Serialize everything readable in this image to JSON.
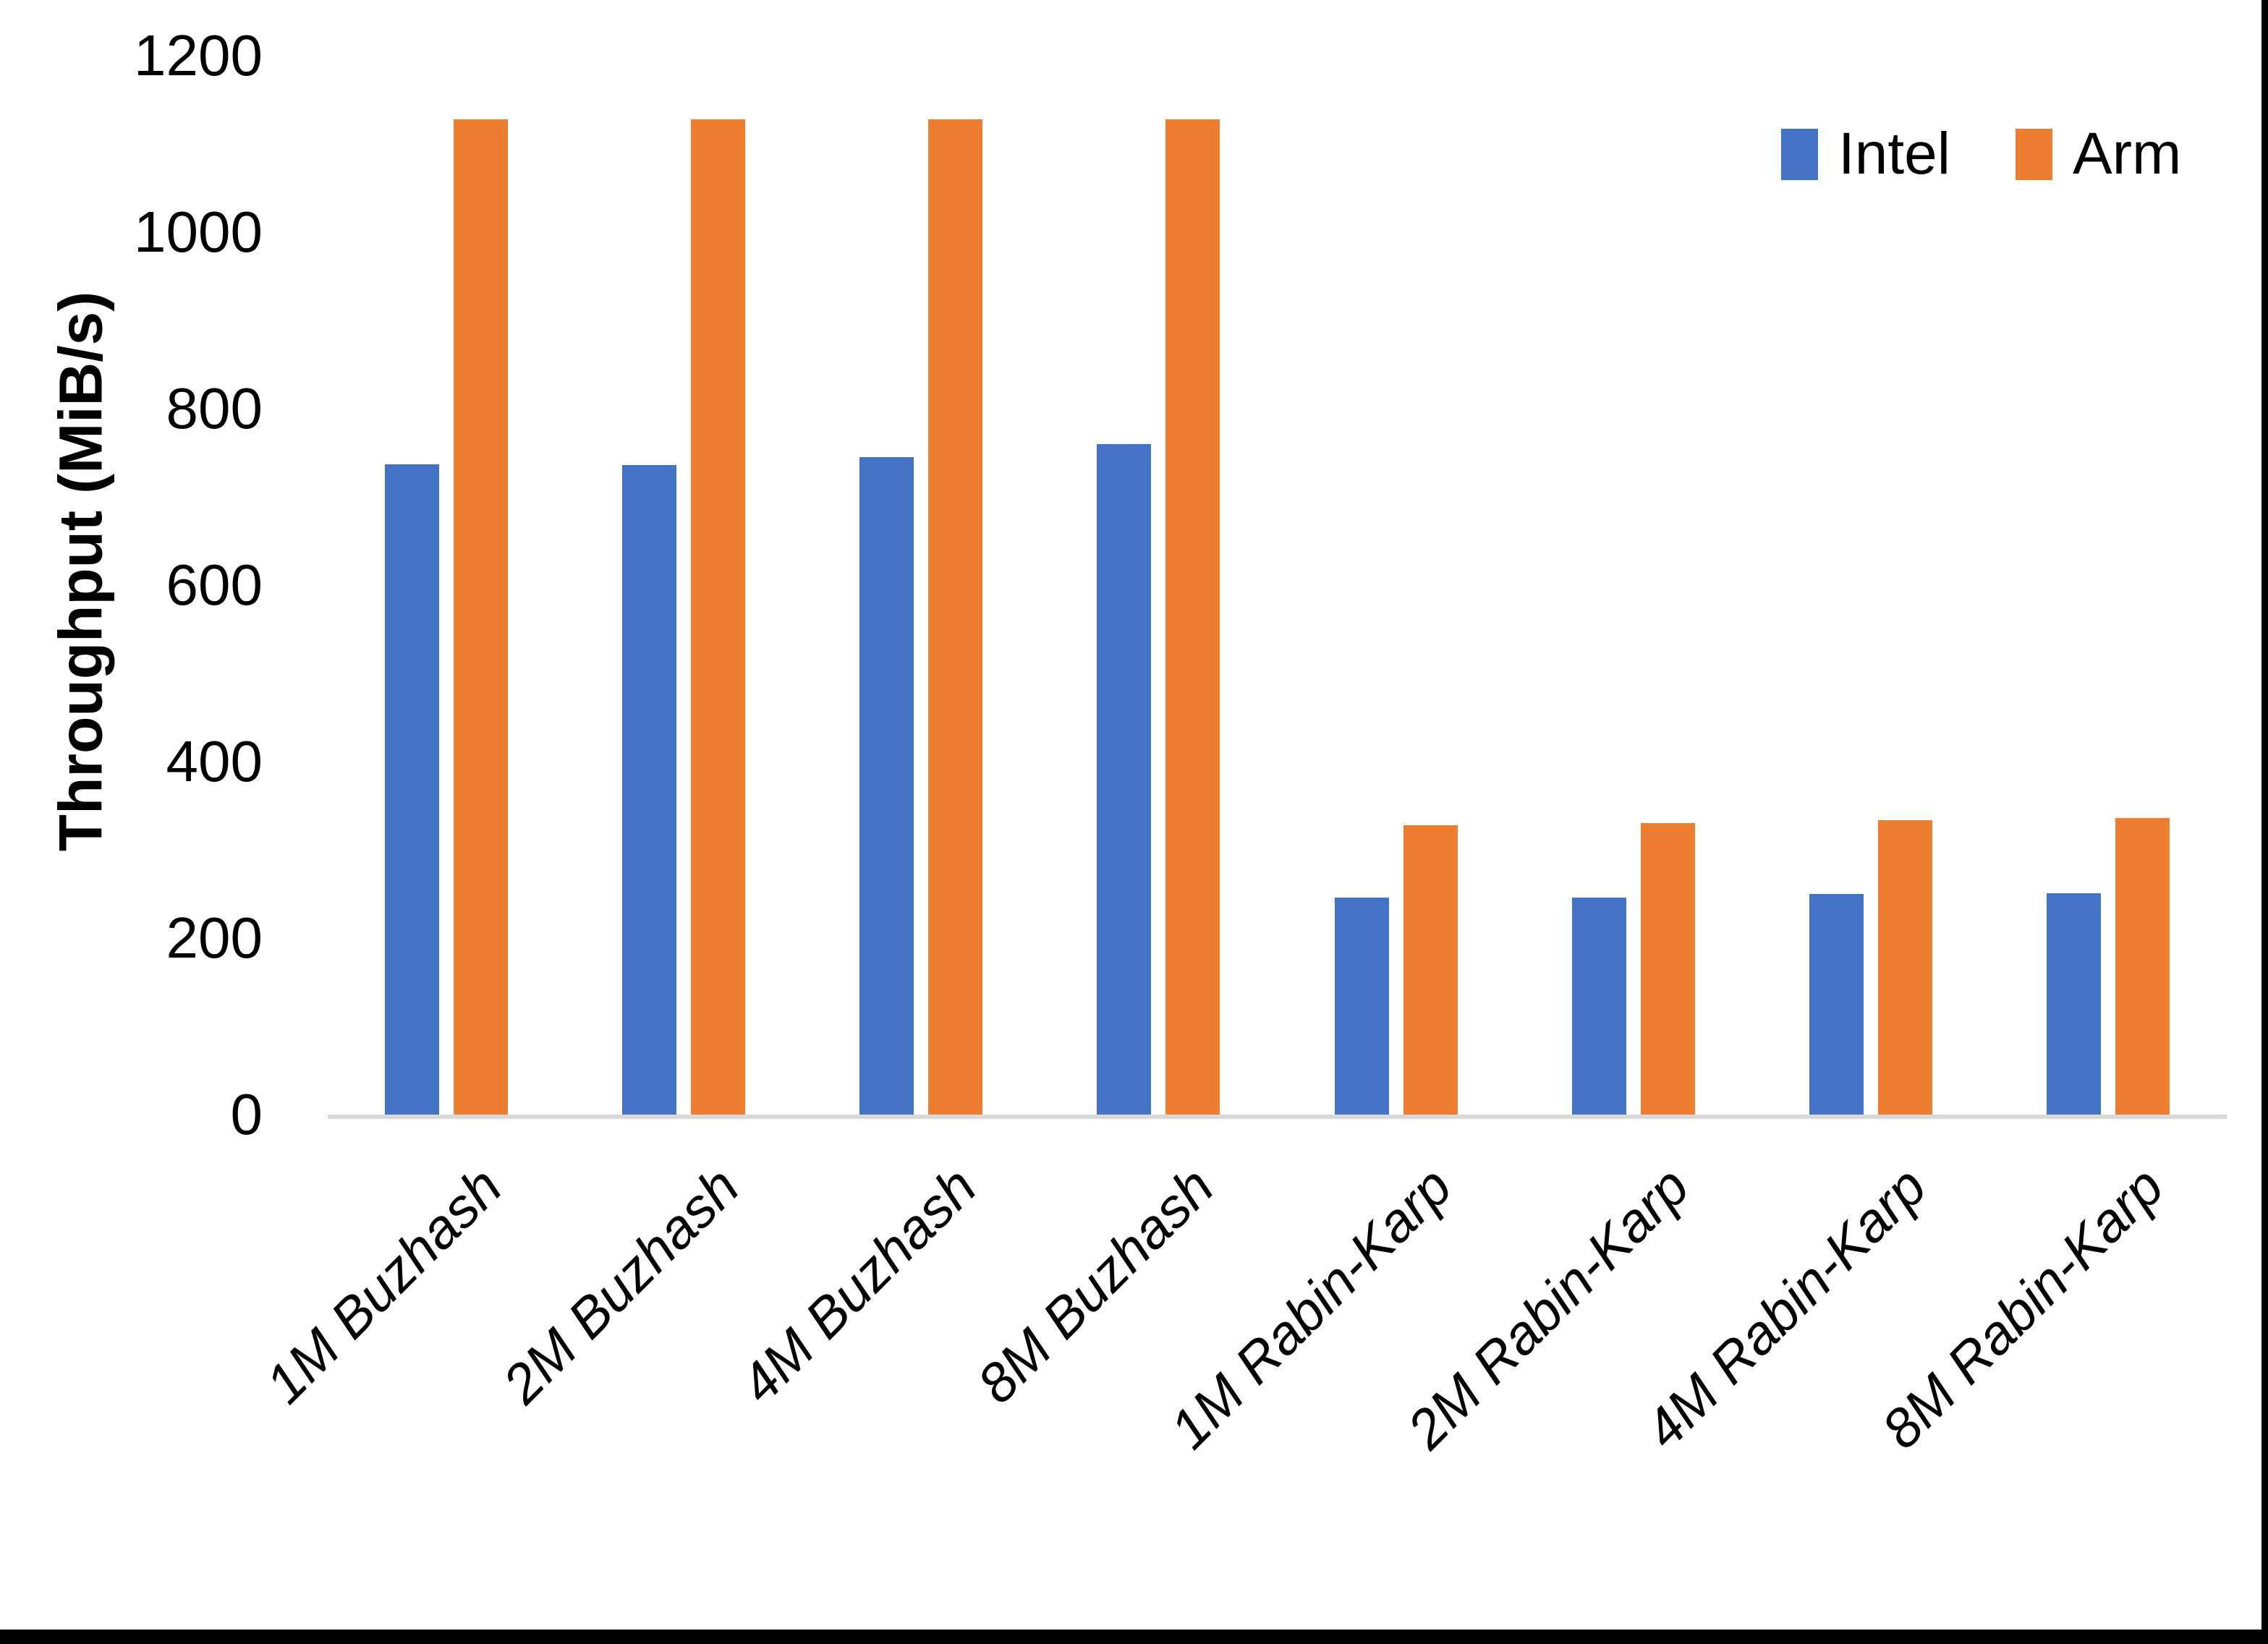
{
  "chart_data": {
    "type": "bar",
    "title": "",
    "categories": [
      "1M Buzhash",
      "2M Buzhash",
      "4M Buzhash",
      "8M Buzhash",
      "1M Rabin-Karp",
      "2M Rabin-Karp",
      "4M Rabin-Karp",
      "8M Rabin-Karp"
    ],
    "series": [
      {
        "name": "Intel",
        "color": "#4472C4",
        "values": [
          737,
          736,
          745,
          760,
          246,
          246,
          250,
          251
        ]
      },
      {
        "name": "Arm",
        "color": "#ED7D31",
        "values": [
          1128,
          1128,
          1128,
          1128,
          328,
          330,
          334,
          336
        ]
      }
    ],
    "xlabel": "",
    "ylabel": "Throughput (MiB/s)",
    "ylim": [
      0,
      1200
    ],
    "yticks": [
      1200,
      1000,
      800,
      600,
      400,
      200,
      0
    ],
    "grid": "off",
    "legend_position": "top-right"
  },
  "style_colors": {
    "axis_line": "#D9D9D9",
    "text": "#000000",
    "page_border": "#000000"
  }
}
